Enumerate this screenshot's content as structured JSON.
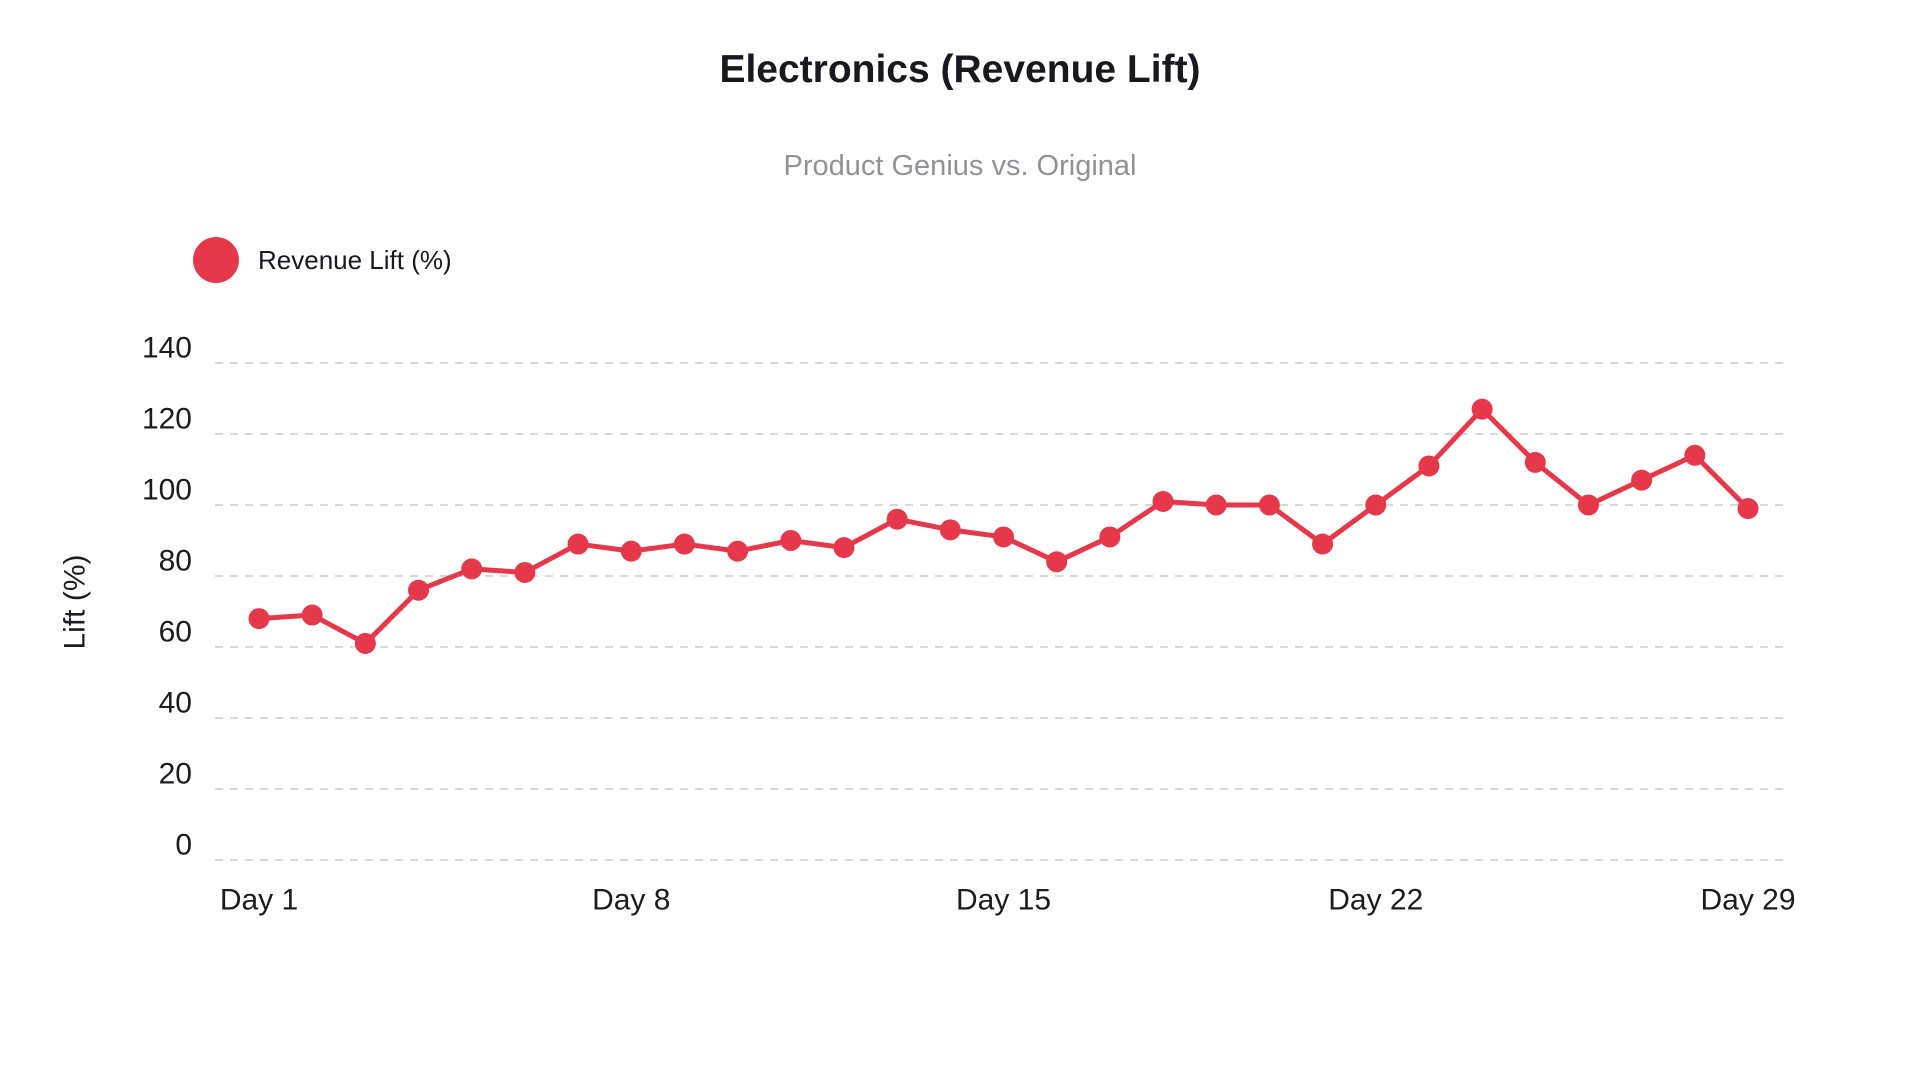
{
  "page": {
    "background": "#ffffff"
  },
  "header": {
    "title": "Electronics (Revenue Lift)",
    "subtitle": "Product Genius vs. Original"
  },
  "legend": {
    "label": "Revenue Lift (%)"
  },
  "colors": {
    "series": "#e5394b",
    "grid": "#d9d9d9",
    "title_text": "#17191e",
    "subtitle_text": "#909296",
    "axis_text": "#1a1c20",
    "background": "#ffffff"
  },
  "chart_data": {
    "type": "line",
    "title": "Electronics (Revenue Lift)",
    "subtitle": "Product Genius vs. Original",
    "xlabel": "",
    "ylabel": "Lift (%)",
    "ylim": [
      0,
      140
    ],
    "y_ticks": [
      0,
      20,
      40,
      60,
      80,
      100,
      120,
      140
    ],
    "grid": "horizontal-dashed",
    "legend_position": "top-left",
    "marker": "circle",
    "categories": [
      "Day 1",
      "Day 2",
      "Day 3",
      "Day 4",
      "Day 5",
      "Day 6",
      "Day 7",
      "Day 8",
      "Day 9",
      "Day 10",
      "Day 11",
      "Day 12",
      "Day 13",
      "Day 14",
      "Day 15",
      "Day 16",
      "Day 17",
      "Day 18",
      "Day 19",
      "Day 20",
      "Day 21",
      "Day 22",
      "Day 23",
      "Day 24",
      "Day 25",
      "Day 26",
      "Day 27",
      "Day 28",
      "Day 29"
    ],
    "x_tick_labels": [
      "Day 1",
      "Day 8",
      "Day 15",
      "Day 22",
      "Day 29"
    ],
    "series": [
      {
        "name": "Revenue Lift (%)",
        "color": "#e5394b",
        "values": [
          68,
          69,
          61,
          76,
          82,
          81,
          89,
          87,
          89,
          87,
          90,
          88,
          96,
          93,
          91,
          84,
          91,
          101,
          100,
          100,
          89,
          100,
          111,
          127,
          112,
          100,
          107,
          114,
          99
        ]
      }
    ]
  }
}
